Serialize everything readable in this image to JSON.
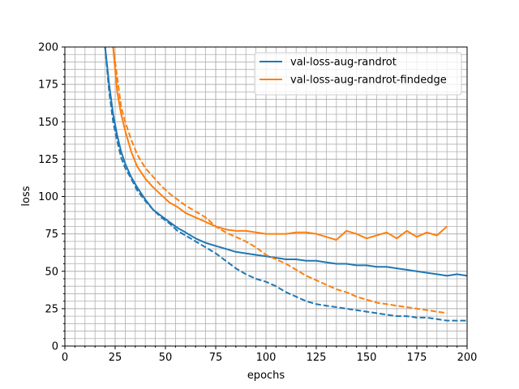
{
  "chart_data": {
    "type": "line",
    "xlabel": "epochs",
    "ylabel": "loss",
    "xlim": [
      0,
      200
    ],
    "ylim": [
      0,
      200
    ],
    "xticks": [
      0,
      25,
      50,
      75,
      100,
      125,
      150,
      175,
      200
    ],
    "yticks": [
      0,
      25,
      50,
      75,
      100,
      125,
      150,
      175,
      200
    ],
    "grid": "major and minor",
    "legend_position": "top-right",
    "series": [
      {
        "name": "val-loss-aug-randrot",
        "color": "#1f77b4",
        "style": "solid",
        "x": [
          18,
          20,
          22,
          24,
          26,
          28,
          30,
          33,
          36,
          40,
          44,
          48,
          52,
          56,
          60,
          65,
          70,
          75,
          80,
          85,
          90,
          95,
          100,
          105,
          110,
          115,
          120,
          125,
          130,
          135,
          140,
          145,
          150,
          155,
          160,
          165,
          170,
          175,
          180,
          185,
          190,
          195,
          200
        ],
        "y": [
          250,
          200,
          175,
          155,
          141,
          130,
          122,
          113,
          106,
          98,
          91,
          87,
          83,
          79,
          76,
          72,
          69,
          67,
          65,
          63,
          62,
          61,
          60,
          59,
          58,
          58,
          57,
          57,
          56,
          55,
          55,
          54,
          54,
          53,
          53,
          52,
          51,
          50,
          49,
          48,
          47,
          48,
          47
        ]
      },
      {
        "name": "",
        "color": "#1f77b4",
        "style": "dashed",
        "x": [
          18,
          20,
          22,
          24,
          26,
          28,
          30,
          33,
          36,
          40,
          44,
          48,
          52,
          56,
          60,
          65,
          70,
          75,
          80,
          85,
          90,
          95,
          100,
          105,
          110,
          115,
          120,
          125,
          130,
          135,
          140,
          145,
          150,
          155,
          160,
          165,
          170,
          175,
          180,
          185,
          190,
          195,
          200
        ],
        "y": [
          250,
          200,
          170,
          150,
          137,
          126,
          119,
          112,
          104,
          97,
          91,
          86,
          82,
          77,
          74,
          70,
          66,
          62,
          57,
          52,
          48,
          45,
          43,
          40,
          36,
          33,
          30,
          28,
          27,
          26,
          25,
          24,
          23,
          22,
          21,
          20,
          20,
          19,
          19,
          18,
          17,
          17,
          17
        ]
      },
      {
        "name": "val-loss-aug-randrot-findedge",
        "color": "#ff7f0e",
        "style": "solid",
        "x": [
          22,
          24,
          26,
          28,
          30,
          33,
          36,
          40,
          44,
          48,
          52,
          56,
          60,
          65,
          70,
          75,
          80,
          85,
          90,
          95,
          100,
          105,
          110,
          115,
          120,
          125,
          130,
          135,
          140,
          145,
          150,
          155,
          160,
          165,
          170,
          175,
          180,
          185,
          190
        ],
        "y": [
          250,
          200,
          170,
          155,
          144,
          130,
          120,
          112,
          106,
          101,
          96,
          93,
          89,
          86,
          83,
          80,
          78,
          77,
          77,
          76,
          75,
          75,
          75,
          76,
          76,
          75,
          73,
          71,
          77,
          75,
          72,
          74,
          76,
          72,
          77,
          73,
          76,
          74,
          80
        ]
      },
      {
        "name": "",
        "color": "#ff7f0e",
        "style": "dashed",
        "x": [
          22,
          24,
          26,
          28,
          30,
          33,
          36,
          40,
          44,
          48,
          52,
          56,
          60,
          65,
          70,
          75,
          80,
          85,
          90,
          95,
          100,
          105,
          110,
          115,
          120,
          125,
          130,
          135,
          140,
          145,
          150,
          155,
          160,
          165,
          170,
          175,
          180,
          185,
          190
        ],
        "y": [
          250,
          200,
          180,
          160,
          150,
          138,
          128,
          119,
          113,
          107,
          102,
          98,
          94,
          90,
          86,
          80,
          76,
          73,
          70,
          66,
          61,
          58,
          55,
          51,
          47,
          44,
          41,
          38,
          36,
          33,
          31,
          29,
          28,
          27,
          26,
          25,
          24,
          23,
          22
        ]
      }
    ]
  }
}
